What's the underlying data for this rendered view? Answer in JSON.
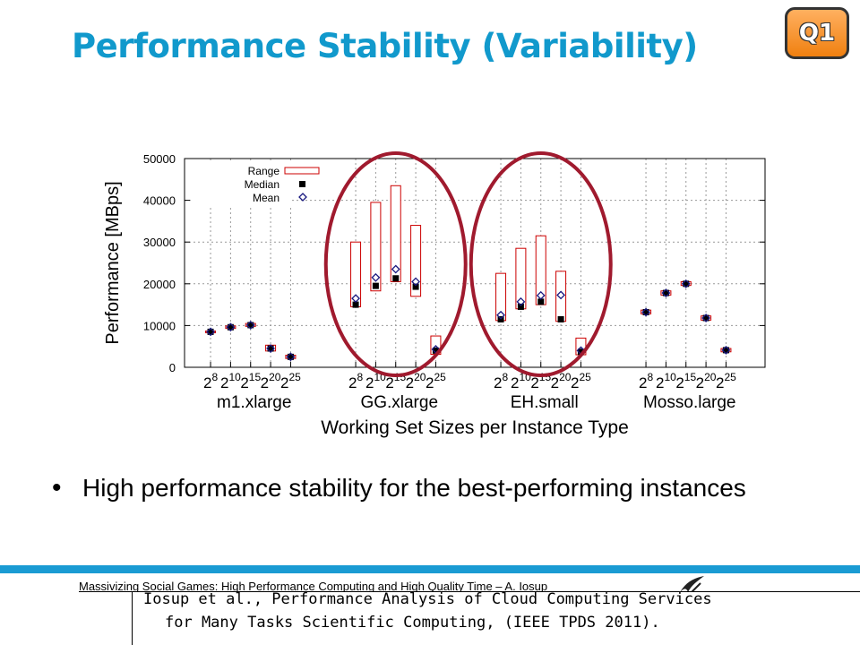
{
  "slide": {
    "title": "Performance Stability (Variability)",
    "badge": "Q1",
    "bullet": "High performance stability for the best-performing instances",
    "footer": "Massivizing Social Games: High Performance Computing and High Quality Time – A. Iosup",
    "citation_line1": "Iosup et al., Performance Analysis of Cloud Computing Services",
    "citation_line2": "for Many Tasks Scientific Computing, (IEEE TPDS 2011).",
    "colors": {
      "title": "#1199cc",
      "accent_bar": "#1a9bd3",
      "highlight_ellipse": "#a01a2e",
      "range_box": "#cc0000",
      "median": "#000000",
      "mean": "#1a1a80"
    },
    "logo_icon": "bird-logo-icon"
  },
  "chart_data": {
    "type": "box",
    "ylabel": "Performance [MBps]",
    "xlabel": "Working Set Sizes per Instance Type",
    "ylim": [
      0,
      50000
    ],
    "yticks": [
      "0",
      "10000",
      "20000",
      "30000",
      "40000",
      "50000"
    ],
    "grid": true,
    "legend_position": "top-left",
    "legend": [
      "Range",
      "Median",
      "Mean"
    ],
    "working_set_sizes": [
      "2^8",
      "2^10",
      "2^15",
      "2^20",
      "2^25"
    ],
    "groups": [
      {
        "name": "m1.xlarge",
        "min": [
          8300,
          9300,
          9800,
          3900,
          2100
        ],
        "max": [
          8700,
          9900,
          10500,
          5300,
          2900
        ],
        "median": [
          8500,
          9600,
          10100,
          4500,
          2500
        ],
        "mean": [
          8500,
          9600,
          10100,
          4500,
          2500
        ]
      },
      {
        "name": "GG.xlarge",
        "min": [
          14500,
          18300,
          20500,
          17000,
          3100
        ],
        "max": [
          30000,
          39500,
          43500,
          34000,
          7500
        ],
        "median": [
          15000,
          19500,
          21300,
          19300,
          4000
        ],
        "mean": [
          16500,
          21500,
          23500,
          20500,
          4300
        ]
      },
      {
        "name": "EH.small",
        "min": [
          11200,
          14000,
          15000,
          11000,
          3000
        ],
        "max": [
          22500,
          28500,
          31500,
          23000,
          7000
        ],
        "median": [
          11500,
          14500,
          15700,
          11500,
          3700
        ],
        "mean": [
          12500,
          15700,
          17200,
          17300,
          4000
        ]
      },
      {
        "name": "Mosso.large",
        "min": [
          12800,
          17300,
          19600,
          11300,
          3700
        ],
        "max": [
          13700,
          18300,
          20500,
          12300,
          4500
        ],
        "median": [
          13200,
          17800,
          20000,
          11800,
          4100
        ],
        "mean": [
          13200,
          17800,
          20000,
          11800,
          4100
        ]
      }
    ]
  }
}
